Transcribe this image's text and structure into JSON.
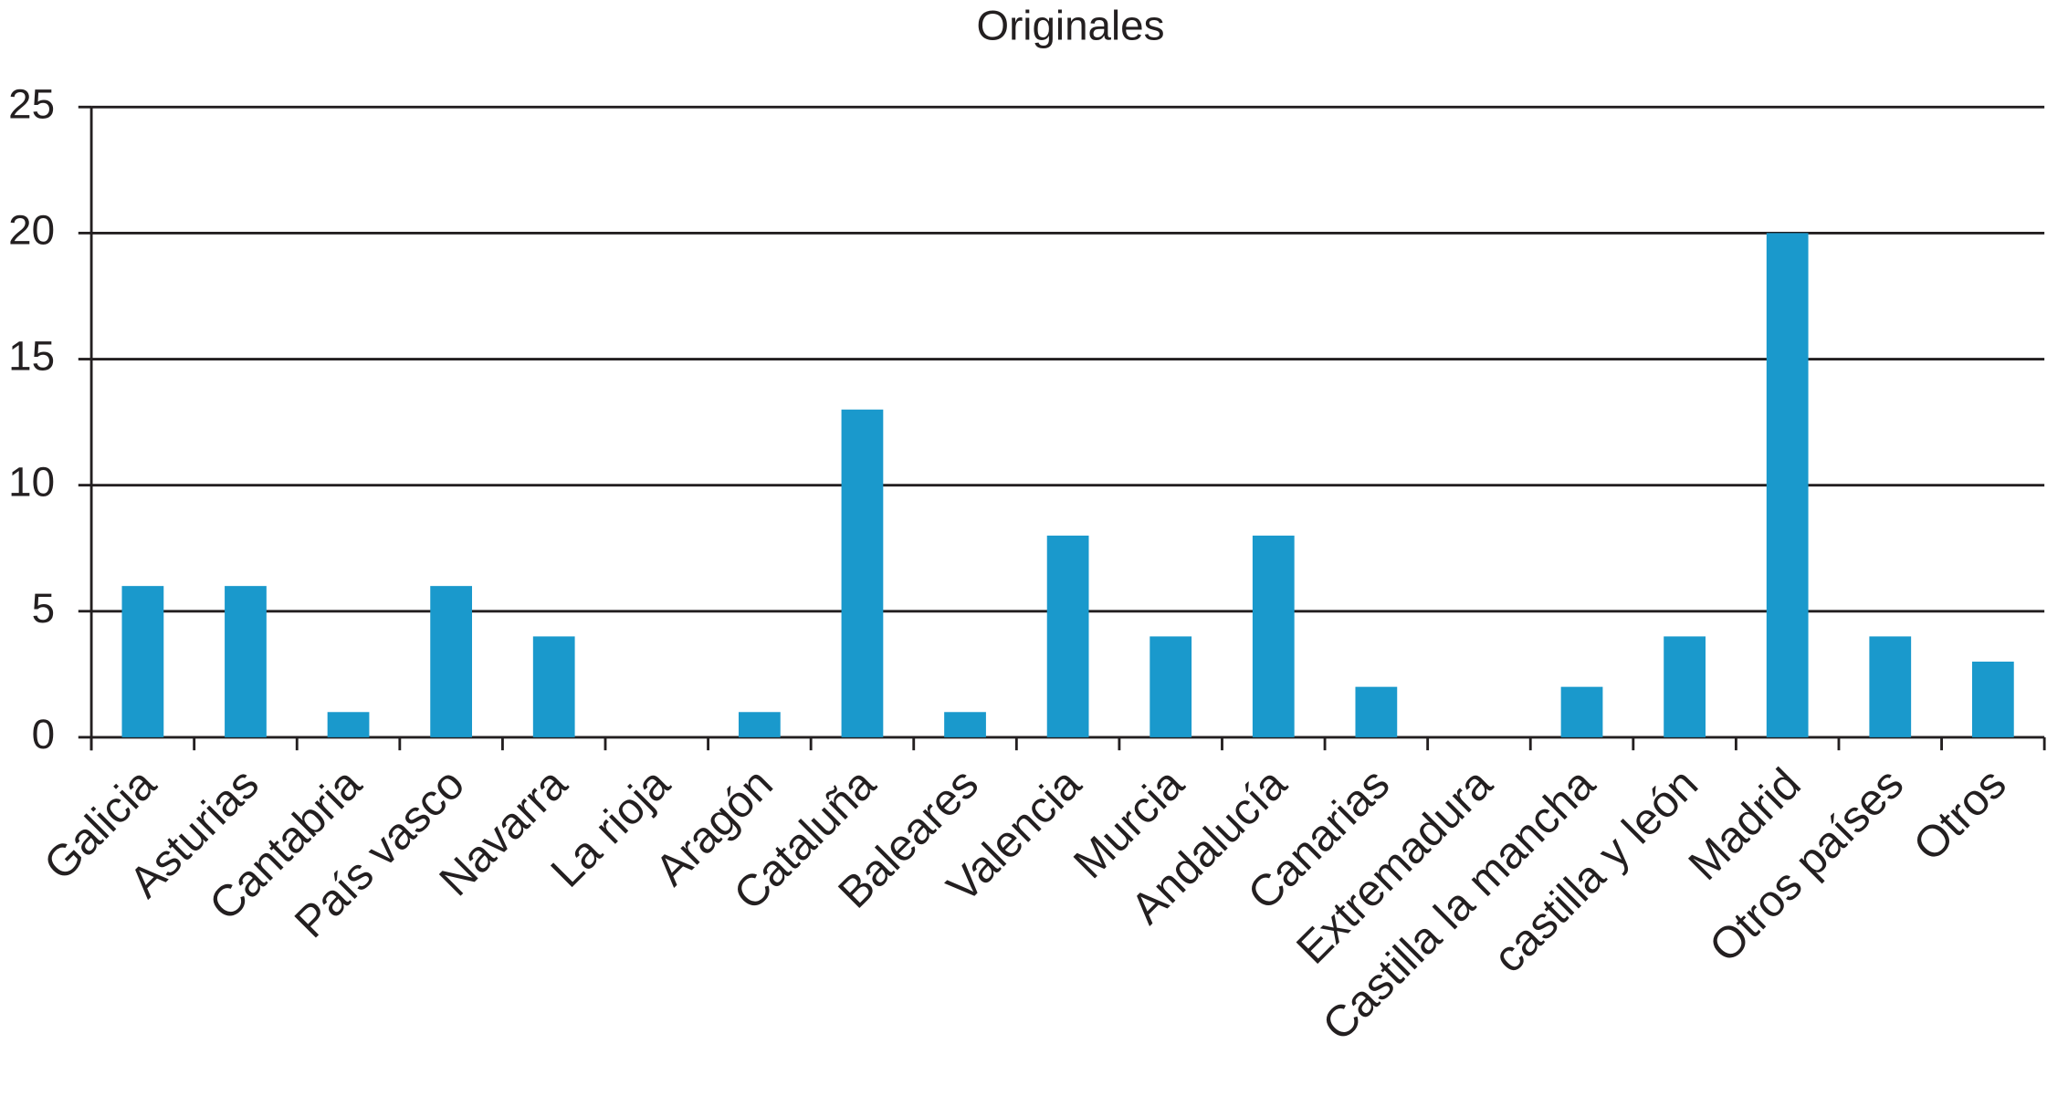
{
  "chart_data": {
    "type": "bar",
    "title": "Originales",
    "categories": [
      "Galicia",
      "Asturias",
      "Cantabria",
      "País vasco",
      "Navarra",
      "La rioja",
      "Aragón",
      "Cataluña",
      "Baleares",
      "Valencia",
      "Murcia",
      "Andalucía",
      "Canarias",
      "Extremadura",
      "Castilla la mancha",
      "castilla y león",
      "Madrid",
      "Otros países",
      "Otros"
    ],
    "values": [
      6,
      6,
      1,
      6,
      4,
      0,
      1,
      13,
      1,
      8,
      4,
      8,
      2,
      0,
      2,
      4,
      20,
      4,
      3
    ],
    "color": "#1a99cc",
    "ylim": [
      0,
      25
    ],
    "yticks": [
      0,
      5,
      10,
      15,
      20,
      25
    ],
    "grid": true
  }
}
